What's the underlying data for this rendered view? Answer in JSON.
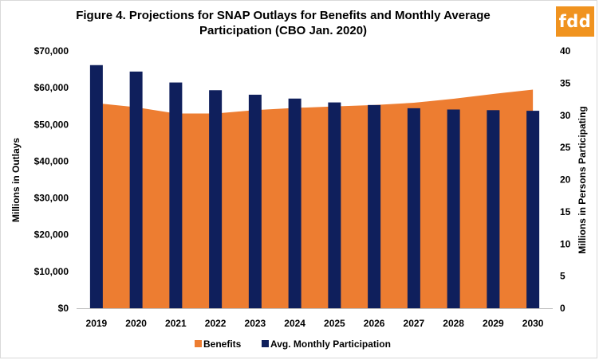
{
  "brand": {
    "logo_text": "fdd",
    "logo_color": "#f0931f"
  },
  "chart_data": {
    "type": "bar",
    "title": "Figure 4. Projections for SNAP Outlays for Benefits and Monthly Average Participation (CBO Jan. 2020)",
    "title_line1": "Figure 4. Projections for SNAP Outlays for Benefits and Monthly Average",
    "title_line2": "Participation (CBO Jan. 2020)",
    "categories": [
      "2019",
      "2020",
      "2021",
      "2022",
      "2023",
      "2024",
      "2025",
      "2026",
      "2027",
      "2028",
      "2029",
      "2030"
    ],
    "series": [
      {
        "name": "Benefits",
        "type": "area",
        "axis": "left",
        "color": "#ed7d31",
        "values": [
          55800,
          54700,
          53000,
          53000,
          53900,
          54500,
          54900,
          55300,
          55900,
          57000,
          58300,
          59500
        ]
      },
      {
        "name": "Avg. Monthly Participation",
        "type": "bar",
        "axis": "right",
        "color": "#0f1f5c",
        "values": [
          37.8,
          36.8,
          35.1,
          33.9,
          33.2,
          32.6,
          32.0,
          31.6,
          31.1,
          30.9,
          30.8,
          30.7
        ]
      }
    ],
    "ylabel": "Millions in Outlays",
    "ylabel_right": "Millions in Persons Participating",
    "ylim": [
      0,
      70000
    ],
    "ylim_right": [
      0,
      40
    ],
    "y_ticks": [
      "$0",
      "$10,000",
      "$20,000",
      "$30,000",
      "$40,000",
      "$50,000",
      "$60,000",
      "$70,000"
    ],
    "y_ticks_right": [
      "0",
      "5",
      "10",
      "15",
      "20",
      "25",
      "30",
      "35",
      "40"
    ],
    "grid": false,
    "legend_position": "bottom"
  }
}
